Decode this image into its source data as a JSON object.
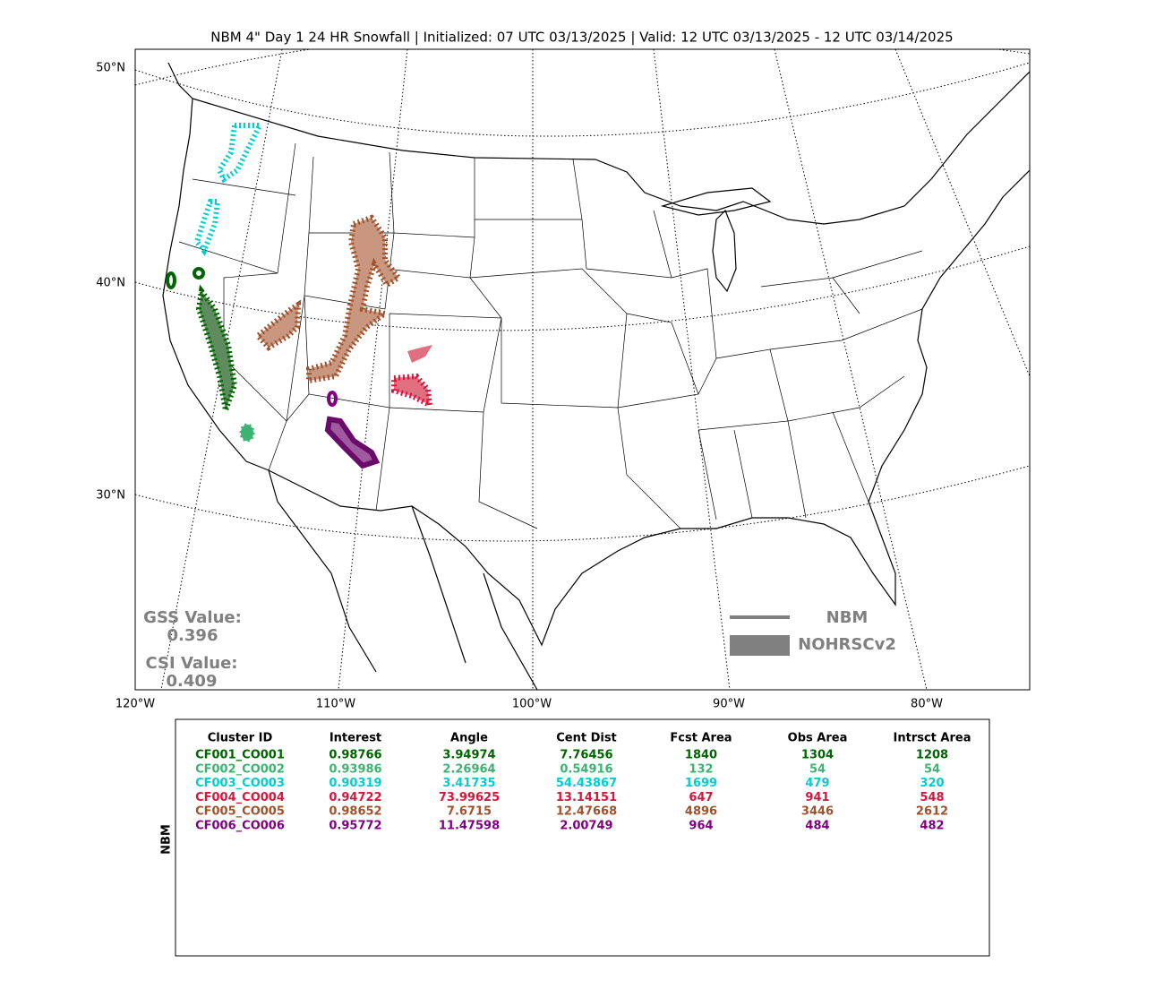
{
  "title": "NBM 4\" Day 1 24 HR Snowfall | Initialized: 07 UTC 03/13/2025 | Valid: 12 UTC 03/13/2025 - 12 UTC 03/14/2025",
  "map": {
    "lat_labels": [
      "50°N",
      "40°N",
      "30°N"
    ],
    "lon_labels": [
      "120°W",
      "110°W",
      "100°W",
      "90°W",
      "80°W"
    ],
    "scores": {
      "gss_label": "GSS Value:",
      "gss": "0.396",
      "csi_label": "CSI Value:",
      "csi": "0.409"
    },
    "legend": [
      "NBM",
      "NOHRSCv2"
    ]
  },
  "table": {
    "side_label": "NBM",
    "columns": [
      "Cluster ID",
      "Interest",
      "Angle",
      "Cent Dist",
      "Fcst Area",
      "Obs Area",
      "Intrsct Area"
    ],
    "row_colors": [
      "#006400",
      "#3cb371",
      "#00ced1",
      "#dc143c",
      "#a0522d",
      "#800080"
    ],
    "rows": [
      [
        "CF001_CO001",
        "0.98766",
        "3.94974",
        "7.76456",
        "1840",
        "1304",
        "1208"
      ],
      [
        "CF002_CO002",
        "0.93986",
        "2.26964",
        "0.54916",
        "132",
        "54",
        "54"
      ],
      [
        "CF003_CO003",
        "0.90319",
        "3.41735",
        "54.43867",
        "1699",
        "479",
        "320"
      ],
      [
        "CF004_CO004",
        "0.94722",
        "73.99625",
        "13.14151",
        "647",
        "941",
        "548"
      ],
      [
        "CF005_CO005",
        "0.98652",
        "7.6715",
        "12.47668",
        "4896",
        "3446",
        "2612"
      ],
      [
        "CF006_CO006",
        "0.95772",
        "11.47598",
        "2.00749",
        "964",
        "484",
        "482"
      ]
    ]
  }
}
